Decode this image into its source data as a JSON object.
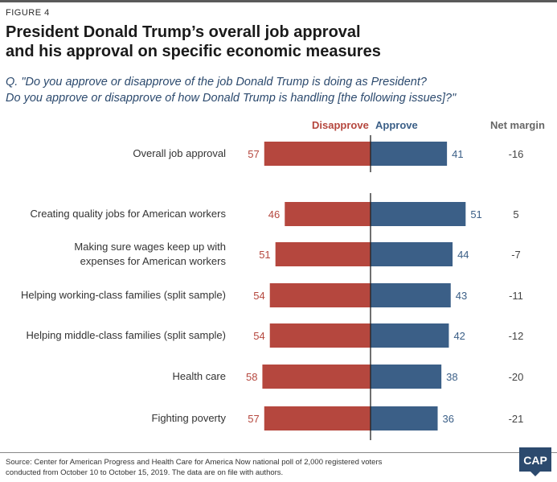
{
  "figure_label": "FIGURE 4",
  "title_lines": [
    "President Donald Trump’s overall job approval",
    "and his approval on specific economic measures"
  ],
  "question_lines": [
    "Q. \"Do you approve or disapprove of the job Donald Trump is doing as President?",
    "Do you approve or disapprove of how Donald Trump is handling [the following issues]?\""
  ],
  "headers": {
    "disapprove": "Disapprove",
    "approve": "Approve",
    "net": "Net margin"
  },
  "source_lines": [
    "Source: Center for American Progress and Health Care for America Now national poll of 2,000 registered voters",
    "conducted from October 10 to October 15, 2019. The data are on file with authors."
  ],
  "logo_text": "CAP",
  "colors": {
    "disapprove": "#b5473e",
    "approve": "#3b5f87",
    "title": "#1a1a1a",
    "question": "#2c4a6e"
  },
  "chart_data": {
    "type": "bar",
    "orientation": "diverging-horizontal",
    "categories": [
      "Overall job approval",
      "Creating quality jobs for American workers",
      "Making sure wages keep up with expenses for American workers",
      "Helping working-class families (split sample)",
      "Helping middle-class families (split sample)",
      "Health care",
      "Fighting poverty"
    ],
    "category_lines": [
      [
        "Overall job approval"
      ],
      [
        "Creating quality jobs for American workers"
      ],
      [
        "Making sure wages keep up with",
        "expenses for American workers"
      ],
      [
        "Helping working-class families (split sample)"
      ],
      [
        "Helping middle-class families (split sample)"
      ],
      [
        "Health care"
      ],
      [
        "Fighting poverty"
      ]
    ],
    "series": [
      {
        "name": "Disapprove",
        "values": [
          57,
          46,
          51,
          54,
          54,
          58,
          57
        ]
      },
      {
        "name": "Approve",
        "values": [
          41,
          51,
          44,
          43,
          42,
          38,
          36
        ]
      }
    ],
    "net_margin": [
      -16,
      5,
      -7,
      -11,
      -12,
      -20,
      -21
    ],
    "grid": false
  }
}
